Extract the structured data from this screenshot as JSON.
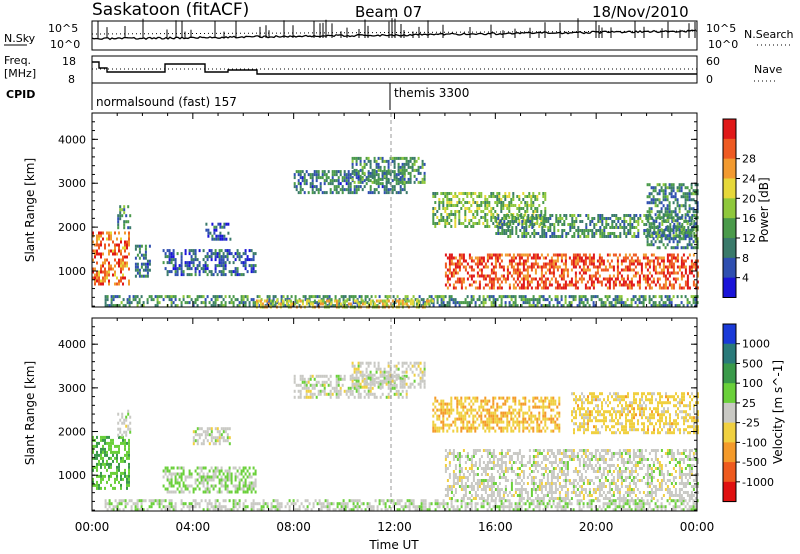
{
  "header": {
    "station": "Saskatoon (fitACF)",
    "beam": "Beam 07",
    "date": "18/Nov/2010"
  },
  "noise_panel": {
    "left_label": "N.Sky",
    "right_label": "N.Search",
    "left_ticks": [
      "10^5",
      "10^0"
    ],
    "right_ticks": [
      "10^5",
      "10^0"
    ]
  },
  "freq_panel": {
    "left_label_line1": "Freq.",
    "left_label_line2": "[MHz]",
    "right_label": "Nave",
    "left_ticks": [
      "18",
      "8"
    ],
    "right_ticks": [
      "60",
      "0"
    ]
  },
  "cpid_panel": {
    "label": "CPID",
    "segments": [
      "normalsound (fast) 157",
      "themis 3300"
    ]
  },
  "x_axis": {
    "label": "Time UT",
    "ticks": [
      "00:00",
      "04:00",
      "08:00",
      "12:00",
      "16:00",
      "20:00",
      "00:00"
    ]
  },
  "chart_data": [
    {
      "type": "heatmap",
      "panel": "power",
      "ylabel": "Slant Range [km]",
      "xlabel": "Time UT",
      "xlim": [
        0,
        24
      ],
      "ylim": [
        180,
        4600
      ],
      "yticks": [
        "1000",
        "2000",
        "3000",
        "4000"
      ],
      "colorbar": {
        "label": "Power [dB]",
        "ticks": [
          "4",
          "8",
          "12",
          "16",
          "20",
          "24",
          "28"
        ],
        "range": [
          0,
          30
        ],
        "colors": [
          "#1a14d8",
          "#2f4fb0",
          "#3a7a6a",
          "#4a9a4a",
          "#8fc83c",
          "#e6d83a",
          "#f29a30",
          "#ee5a22",
          "#e01818"
        ]
      },
      "echo_regions": [
        {
          "t0": 0.0,
          "t1": 1.5,
          "r0": 700,
          "r1": 1900,
          "level": 24
        },
        {
          "t0": 1.0,
          "t1": 1.5,
          "r0": 2000,
          "r1": 2500,
          "level": 10
        },
        {
          "t0": 1.7,
          "t1": 2.3,
          "r0": 900,
          "r1": 1600,
          "level": 8
        },
        {
          "t0": 2.8,
          "t1": 6.5,
          "r0": 900,
          "r1": 1500,
          "level": 6
        },
        {
          "t0": 4.5,
          "t1": 5.5,
          "r0": 1700,
          "r1": 2100,
          "level": 6
        },
        {
          "t0": 0.5,
          "t1": 24.0,
          "r0": 200,
          "r1": 450,
          "level": 10
        },
        {
          "t0": 6.5,
          "t1": 13.5,
          "r0": 200,
          "r1": 350,
          "level": 18
        },
        {
          "t0": 8.0,
          "t1": 12.5,
          "r0": 2800,
          "r1": 3300,
          "level": 8
        },
        {
          "t0": 10.3,
          "t1": 13.2,
          "r0": 3000,
          "r1": 3600,
          "level": 10
        },
        {
          "t0": 13.5,
          "t1": 18.0,
          "r0": 2000,
          "r1": 2800,
          "level": 14
        },
        {
          "t0": 16.0,
          "t1": 24.0,
          "r0": 1800,
          "r1": 2300,
          "level": 10
        },
        {
          "t0": 14.0,
          "t1": 24.0,
          "r0": 600,
          "r1": 1400,
          "level": 26
        },
        {
          "t0": 22.0,
          "t1": 24.0,
          "r0": 1500,
          "r1": 3000,
          "level": 9
        }
      ]
    },
    {
      "type": "heatmap",
      "panel": "velocity",
      "ylabel": "Slant Range [km]",
      "xlabel": "Time UT",
      "xlim": [
        0,
        24
      ],
      "ylim": [
        180,
        4600
      ],
      "yticks": [
        "1000",
        "2000",
        "3000",
        "4000"
      ],
      "colorbar": {
        "label": "Velocity [m s^-1]",
        "ticks": [
          "1000",
          "500",
          "100",
          "25",
          "-25",
          "-100",
          "-500",
          "-1000"
        ],
        "range": [
          -1000,
          1000
        ],
        "colors": [
          "#1a3ad8",
          "#2a7a7a",
          "#3a9a4a",
          "#6ad03a",
          "#c9c9c4",
          "#f0d040",
          "#f49a2a",
          "#ee5a1e",
          "#e01010"
        ]
      },
      "echo_regions": [
        {
          "t0": 0.0,
          "t1": 1.5,
          "r0": 700,
          "r1": 1900,
          "level": 300
        },
        {
          "t0": 1.0,
          "t1": 1.5,
          "r0": 1900,
          "r1": 2500,
          "level": 0
        },
        {
          "t0": 2.8,
          "t1": 6.5,
          "r0": 600,
          "r1": 1200,
          "level": 150
        },
        {
          "t0": 4.0,
          "t1": 5.5,
          "r0": 1700,
          "r1": 2100,
          "level": 0
        },
        {
          "t0": 0.5,
          "t1": 24.0,
          "r0": 200,
          "r1": 450,
          "level": 60
        },
        {
          "t0": 8.0,
          "t1": 12.5,
          "r0": 2800,
          "r1": 3300,
          "level": 0
        },
        {
          "t0": 10.3,
          "t1": 13.2,
          "r0": 3000,
          "r1": 3600,
          "level": 0
        },
        {
          "t0": 13.5,
          "t1": 18.5,
          "r0": 2000,
          "r1": 2800,
          "level": -300
        },
        {
          "t0": 14.0,
          "t1": 24.0,
          "r0": 500,
          "r1": 1600,
          "level": 0
        },
        {
          "t0": 19.0,
          "t1": 24.0,
          "r0": 2000,
          "r1": 2900,
          "level": -200
        }
      ]
    }
  ]
}
